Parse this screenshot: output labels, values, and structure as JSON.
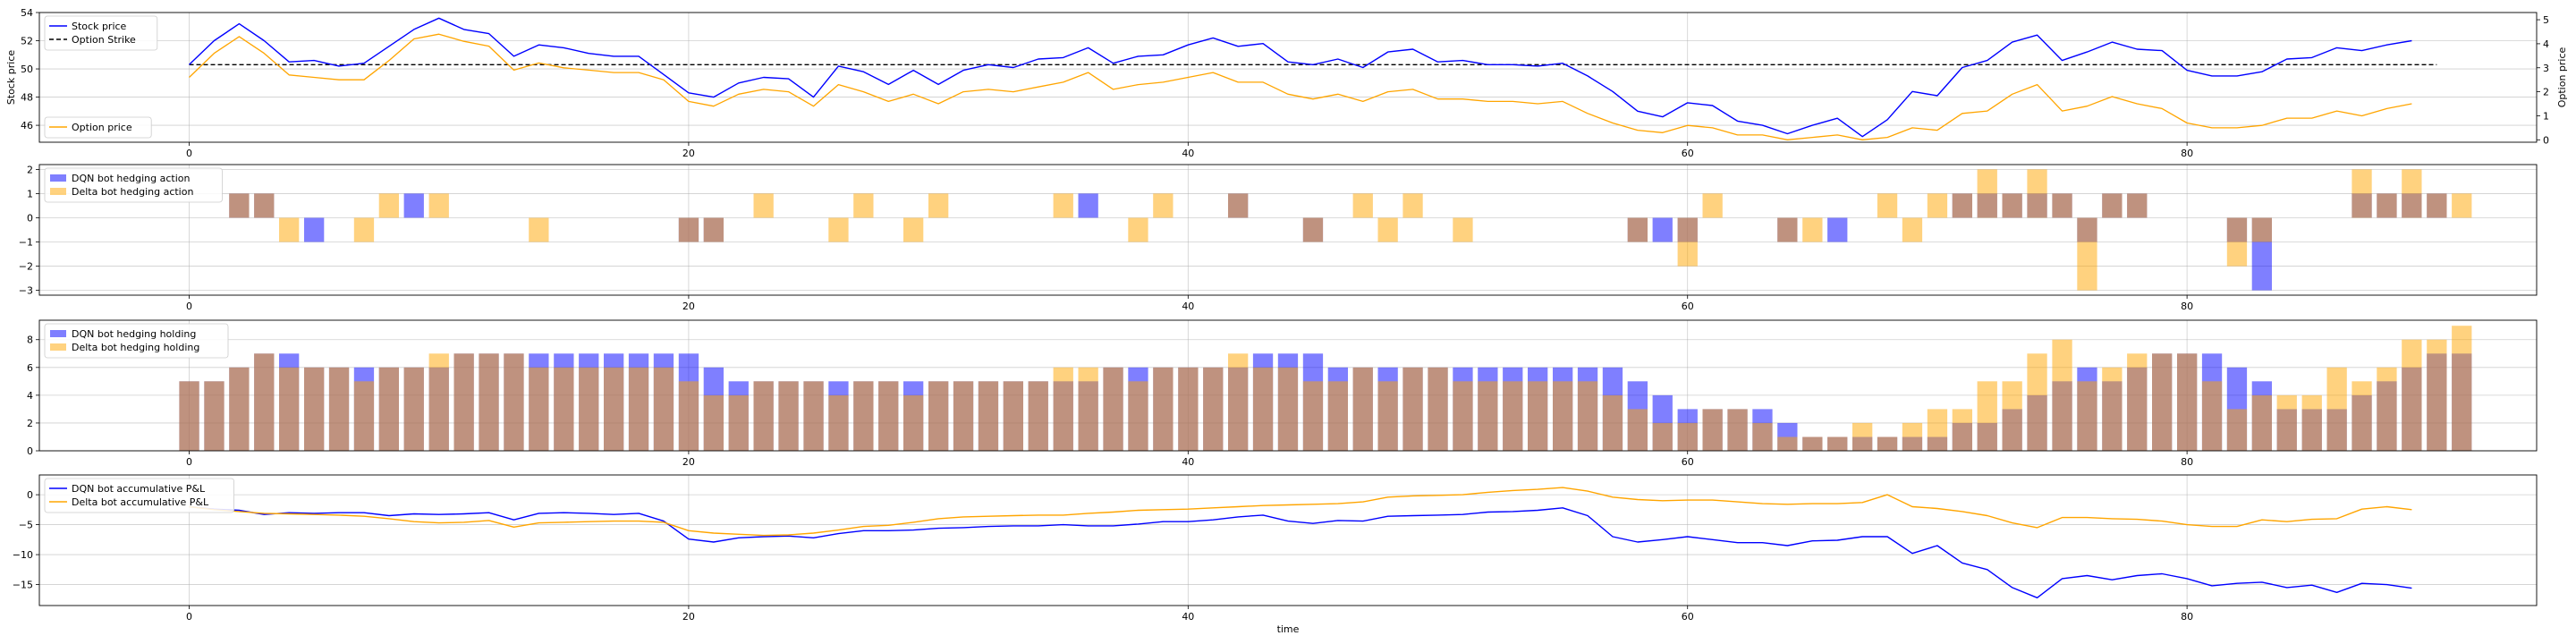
{
  "chart_data": [
    {
      "type": "line",
      "xlabel": "",
      "ylabel": "Stock price",
      "ylabel_right": "Option price",
      "xlim": [
        -6,
        94
      ],
      "ylim": [
        44.8,
        54
      ],
      "ylim_right": [
        -0.1,
        5.3
      ],
      "xticks": [
        0,
        20,
        40,
        60,
        80
      ],
      "yticks": [
        46,
        48,
        50,
        52,
        54
      ],
      "yticks_right": [
        0,
        1,
        2,
        3,
        4,
        5
      ],
      "grid": true,
      "legend_top": "top-left",
      "legend_bottom": "bottom-left",
      "colors": {
        "stock": "#0000ff",
        "strike": "#000000",
        "option": "#ffa500"
      },
      "strike": 50.3,
      "series": [
        {
          "name": "Stock price",
          "axis": "left",
          "values": [
            50.3,
            52.0,
            53.2,
            52.0,
            50.5,
            50.6,
            50.2,
            50.4,
            51.6,
            52.8,
            53.6,
            52.8,
            52.5,
            50.9,
            51.7,
            51.5,
            51.1,
            50.9,
            50.9,
            49.6,
            48.3,
            48.0,
            49.0,
            49.4,
            49.3,
            48.0,
            50.2,
            49.8,
            48.9,
            49.9,
            48.9,
            49.9,
            50.3,
            50.1,
            50.7,
            50.8,
            51.5,
            50.4,
            50.9,
            51.0,
            51.7,
            52.2,
            51.6,
            51.8,
            50.5,
            50.3,
            50.7,
            50.1,
            51.2,
            51.4,
            50.5,
            50.6,
            50.3,
            50.3,
            50.2,
            50.4,
            49.5,
            48.4,
            47.0,
            46.6,
            47.6,
            47.4,
            46.3,
            46.0,
            45.4,
            46.0,
            46.5,
            45.2,
            46.4,
            48.4,
            48.1,
            50.1,
            50.6,
            51.9,
            52.4,
            50.6,
            51.2,
            51.9,
            51.4,
            51.3,
            49.9,
            49.5,
            49.5,
            49.8,
            50.7,
            50.8,
            51.5,
            51.3,
            51.7,
            52.0
          ]
        },
        {
          "name": "Option price",
          "axis": "right",
          "values": [
            2.6,
            3.6,
            4.3,
            3.6,
            2.7,
            2.6,
            2.5,
            2.5,
            3.3,
            4.2,
            4.4,
            4.1,
            3.9,
            2.9,
            3.2,
            3.0,
            2.9,
            2.8,
            2.8,
            2.5,
            1.6,
            1.4,
            1.9,
            2.1,
            2.0,
            1.4,
            2.3,
            2.0,
            1.6,
            1.9,
            1.5,
            2.0,
            2.1,
            2.0,
            2.2,
            2.4,
            2.8,
            2.1,
            2.3,
            2.4,
            2.6,
            2.8,
            2.4,
            2.4,
            1.9,
            1.7,
            1.9,
            1.6,
            2.0,
            2.1,
            1.7,
            1.7,
            1.6,
            1.6,
            1.5,
            1.6,
            1.1,
            0.7,
            0.4,
            0.3,
            0.6,
            0.5,
            0.2,
            0.2,
            0.0,
            0.1,
            0.2,
            0.0,
            0.1,
            0.5,
            0.4,
            1.1,
            1.2,
            1.9,
            2.3,
            1.2,
            1.4,
            1.8,
            1.5,
            1.3,
            0.7,
            0.5,
            0.5,
            0.6,
            0.9,
            0.9,
            1.2,
            1.0,
            1.3,
            1.5
          ]
        }
      ]
    },
    {
      "type": "bar",
      "xlabel": "",
      "ylabel": "",
      "xlim": [
        -6,
        94
      ],
      "ylim": [
        -3.2,
        2.2
      ],
      "xticks": [
        0,
        20,
        40,
        60,
        80
      ],
      "yticks": [
        -3,
        -2,
        -1,
        0,
        1,
        2
      ],
      "grid": true,
      "legend": "top-left",
      "colors": {
        "dqn": "#0000ff",
        "delta": "#ffa500",
        "opacity": 0.5
      },
      "series": [
        {
          "name": "DQN bot hedging action",
          "values": [
            0,
            0,
            1,
            1,
            0,
            -1,
            0,
            0,
            0,
            1,
            0,
            0,
            0,
            0,
            0,
            0,
            0,
            0,
            0,
            0,
            -1,
            -1,
            0,
            0,
            0,
            0,
            0,
            0,
            0,
            0,
            0,
            0,
            0,
            0,
            0,
            0,
            1,
            0,
            0,
            0,
            0,
            0,
            1,
            0,
            0,
            -1,
            0,
            0,
            0,
            0,
            0,
            0,
            0,
            0,
            0,
            0,
            0,
            0,
            -1,
            -1,
            -1,
            0,
            0,
            0,
            -1,
            0,
            -1,
            0,
            0,
            0,
            0,
            1,
            1,
            1,
            1,
            1,
            -1,
            1,
            1,
            0,
            0,
            0,
            -1,
            -3,
            0,
            0,
            0,
            1,
            1,
            1,
            1,
            0
          ]
        },
        {
          "name": "Delta bot hedging action",
          "values": [
            0,
            0,
            1,
            1,
            -1,
            0,
            0,
            -1,
            1,
            0,
            1,
            0,
            0,
            0,
            -1,
            0,
            0,
            0,
            0,
            0,
            -1,
            -1,
            0,
            1,
            0,
            0,
            -1,
            1,
            0,
            -1,
            1,
            0,
            0,
            0,
            0,
            1,
            0,
            0,
            -1,
            1,
            0,
            0,
            1,
            0,
            0,
            -1,
            0,
            1,
            -1,
            1,
            0,
            -1,
            0,
            0,
            0,
            0,
            0,
            0,
            -1,
            0,
            -2,
            1,
            0,
            0,
            -1,
            -1,
            0,
            0,
            1,
            -1,
            1,
            1,
            2,
            1,
            2,
            1,
            -3,
            1,
            1,
            0,
            0,
            0,
            -2,
            -1,
            0,
            0,
            0,
            2,
            1,
            2,
            1,
            1
          ]
        }
      ]
    },
    {
      "type": "bar",
      "xlabel": "",
      "ylabel": "",
      "xlim": [
        -6,
        94
      ],
      "ylim": [
        0,
        9.4
      ],
      "xticks": [
        0,
        20,
        40,
        60,
        80
      ],
      "yticks": [
        0,
        2,
        4,
        6,
        8
      ],
      "grid": true,
      "legend": "top-left",
      "colors": {
        "dqn": "#0000ff",
        "delta": "#ffa500",
        "opacity": 0.5
      },
      "series": [
        {
          "name": "DQN bot hedging holding",
          "values": [
            5,
            5,
            6,
            7,
            7,
            6,
            6,
            6,
            6,
            6,
            6,
            7,
            7,
            7,
            7,
            7,
            7,
            7,
            7,
            7,
            7,
            6,
            5,
            5,
            5,
            5,
            5,
            5,
            5,
            5,
            5,
            5,
            5,
            5,
            5,
            5,
            5,
            6,
            6,
            6,
            6,
            6,
            6,
            7,
            7,
            7,
            6,
            6,
            6,
            6,
            6,
            6,
            6,
            6,
            6,
            6,
            6,
            6,
            5,
            4,
            3,
            3,
            3,
            3,
            2,
            1,
            1,
            1,
            1,
            1,
            1,
            2,
            2,
            3,
            4,
            5,
            6,
            5,
            6,
            7,
            7,
            7,
            6,
            5,
            3,
            3,
            3,
            4,
            5,
            6,
            7,
            7
          ]
        },
        {
          "name": "Delta bot hedging holding",
          "values": [
            5,
            5,
            6,
            7,
            6,
            6,
            6,
            5,
            6,
            6,
            7,
            7,
            7,
            7,
            6,
            6,
            6,
            6,
            6,
            6,
            5,
            4,
            4,
            5,
            5,
            5,
            4,
            5,
            5,
            4,
            5,
            5,
            5,
            5,
            5,
            6,
            6,
            6,
            5,
            6,
            6,
            6,
            7,
            6,
            6,
            5,
            5,
            6,
            5,
            6,
            6,
            5,
            5,
            5,
            5,
            5,
            5,
            4,
            3,
            2,
            2,
            3,
            3,
            2,
            1,
            1,
            1,
            2,
            1,
            2,
            3,
            3,
            5,
            5,
            7,
            8,
            5,
            6,
            7,
            7,
            7,
            5,
            3,
            4,
            4,
            4,
            6,
            5,
            6,
            8,
            8,
            9
          ]
        }
      ]
    },
    {
      "type": "line",
      "xlabel": "time",
      "ylabel": "",
      "xlim": [
        -6,
        94
      ],
      "ylim": [
        -18.5,
        3.3
      ],
      "xticks": [
        0,
        20,
        40,
        60,
        80
      ],
      "yticks": [
        -15,
        -10,
        -5,
        0
      ],
      "grid": true,
      "legend": "top-left",
      "colors": {
        "dqn": "#0000ff",
        "delta": "#ffa500"
      },
      "series": [
        {
          "name": "DQN bot accumulative P&L",
          "values": [
            -2.0,
            -2.4,
            -2.6,
            -3.3,
            -3.0,
            -3.1,
            -3.0,
            -3.0,
            -3.5,
            -3.2,
            -3.3,
            -3.2,
            -3.0,
            -4.2,
            -3.1,
            -3.0,
            -3.1,
            -3.3,
            -3.1,
            -4.4,
            -7.4,
            -7.9,
            -7.2,
            -7.0,
            -6.9,
            -7.2,
            -6.5,
            -6.0,
            -6.0,
            -5.9,
            -5.6,
            -5.5,
            -5.3,
            -5.2,
            -5.2,
            -5.0,
            -5.2,
            -5.2,
            -4.9,
            -4.5,
            -4.5,
            -4.2,
            -3.7,
            -3.4,
            -4.4,
            -4.8,
            -4.3,
            -4.4,
            -3.6,
            -3.5,
            -3.4,
            -3.3,
            -2.9,
            -2.8,
            -2.6,
            -2.2,
            -3.5,
            -7.0,
            -7.9,
            -7.5,
            -7.0,
            -7.5,
            -8.0,
            -8.0,
            -8.5,
            -7.7,
            -7.6,
            -7.0,
            -7.0,
            -9.8,
            -8.5,
            -11.4,
            -12.5,
            -15.5,
            -17.2,
            -14.0,
            -13.5,
            -14.2,
            -13.5,
            -13.2,
            -14.0,
            -15.2,
            -14.8,
            -14.6,
            -15.5,
            -15.1,
            -16.3,
            -14.8,
            -15.0,
            -15.6
          ]
        },
        {
          "name": "Delta bot accumulative P&L",
          "values": [
            -2.0,
            -2.5,
            -2.8,
            -3.1,
            -3.2,
            -3.3,
            -3.4,
            -3.6,
            -4.0,
            -4.5,
            -4.7,
            -4.6,
            -4.3,
            -5.4,
            -4.7,
            -4.6,
            -4.5,
            -4.4,
            -4.4,
            -4.6,
            -6.0,
            -6.4,
            -6.6,
            -6.8,
            -6.7,
            -6.4,
            -5.9,
            -5.3,
            -5.1,
            -4.6,
            -4.0,
            -3.7,
            -3.6,
            -3.5,
            -3.4,
            -3.4,
            -3.1,
            -2.9,
            -2.6,
            -2.5,
            -2.4,
            -2.2,
            -2.0,
            -1.8,
            -1.7,
            -1.6,
            -1.5,
            -1.2,
            -0.4,
            -0.2,
            -0.1,
            0.0,
            0.4,
            0.7,
            0.9,
            1.2,
            0.6,
            -0.4,
            -0.8,
            -1.0,
            -0.9,
            -0.9,
            -1.2,
            -1.5,
            -1.6,
            -1.5,
            -1.5,
            -1.3,
            0.0,
            -2.0,
            -2.3,
            -2.8,
            -3.5,
            -4.7,
            -5.5,
            -3.8,
            -3.8,
            -4.0,
            -4.1,
            -4.4,
            -5.0,
            -5.3,
            -5.3,
            -4.2,
            -4.5,
            -4.1,
            -4.0,
            -2.4,
            -2.0,
            -2.5
          ]
        }
      ]
    }
  ]
}
